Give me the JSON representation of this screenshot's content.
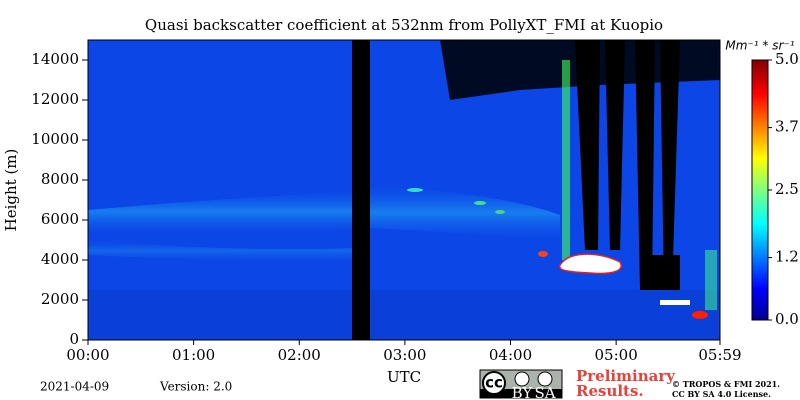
{
  "chart_data": {
    "type": "heatmap",
    "title": "Quasi backscatter coefficient at 532nm from PollyXT_FMI at Kuopio",
    "xlabel": "UTC",
    "ylabel": "Height (m)",
    "xlim": [
      0,
      5.9833
    ],
    "ylim": [
      0,
      15000
    ],
    "xticks": [
      {
        "value": 0,
        "label": "00:00"
      },
      {
        "value": 1,
        "label": "01:00"
      },
      {
        "value": 2,
        "label": "02:00"
      },
      {
        "value": 3,
        "label": "03:00"
      },
      {
        "value": 4,
        "label": "04:00"
      },
      {
        "value": 5,
        "label": "05:00"
      },
      {
        "value": 5.9833,
        "label": "05:59"
      }
    ],
    "yticks": [
      0,
      2000,
      4000,
      6000,
      8000,
      10000,
      12000,
      14000
    ],
    "colorbar": {
      "label": "Mm⁻¹ * sr⁻¹",
      "lim": [
        0,
        5
      ],
      "ticks": [
        {
          "value": 0,
          "label": "0.0"
        },
        1.2,
        2.5,
        3.7,
        {
          "value": 5,
          "label": "5.0"
        }
      ]
    },
    "date": "2021-04-09",
    "version": "Version: 2.0",
    "license_badge": [
      "BY",
      "SA"
    ],
    "notice": "Preliminary Results.",
    "copyright": [
      "© TROPOS & FMI 2021.",
      "CC BY SA 4.0 License."
    ]
  }
}
